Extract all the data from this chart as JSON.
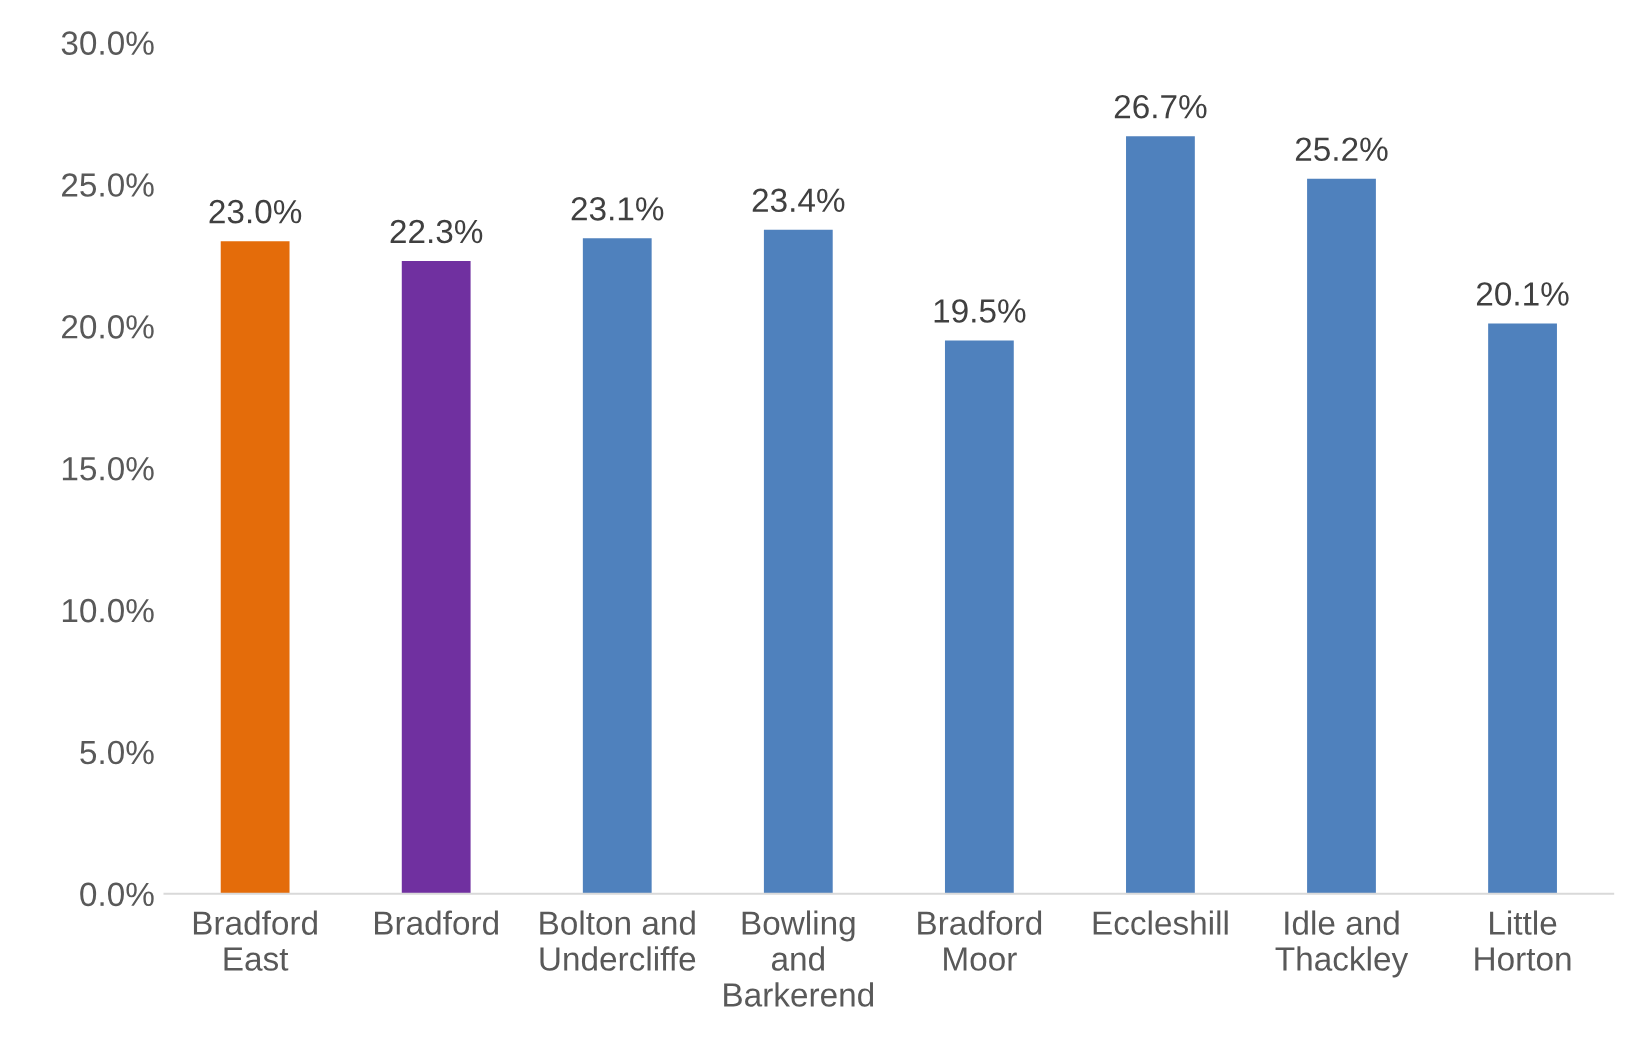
{
  "chart_data": {
    "type": "bar",
    "categories": [
      "Bradford East",
      "Bradford",
      "Bolton and Undercliffe",
      "Bowling and Barkerend",
      "Bradford Moor",
      "Eccleshill",
      "Idle and Thackley",
      "Little Horton"
    ],
    "values": [
      23.0,
      22.3,
      23.1,
      23.4,
      19.5,
      26.7,
      25.2,
      20.1
    ],
    "value_labels": [
      "23.0%",
      "22.3%",
      "23.1%",
      "23.4%",
      "19.5%",
      "26.7%",
      "25.2%",
      "20.1%"
    ],
    "colors": [
      "#e46c0a",
      "#7030a0",
      "#4f81bd",
      "#4f81bd",
      "#4f81bd",
      "#4f81bd",
      "#4f81bd",
      "#4f81bd"
    ],
    "ylim": [
      0,
      30
    ],
    "yticks": [
      {
        "value": 0,
        "label": "0.0%"
      },
      {
        "value": 5,
        "label": "5.0%"
      },
      {
        "value": 10,
        "label": "10.0%"
      },
      {
        "value": 15,
        "label": "15.0%"
      },
      {
        "value": 20,
        "label": "20.0%"
      },
      {
        "value": 25,
        "label": "25.0%"
      },
      {
        "value": 30,
        "label": "30.0%"
      }
    ],
    "grid": false,
    "legend": false
  }
}
